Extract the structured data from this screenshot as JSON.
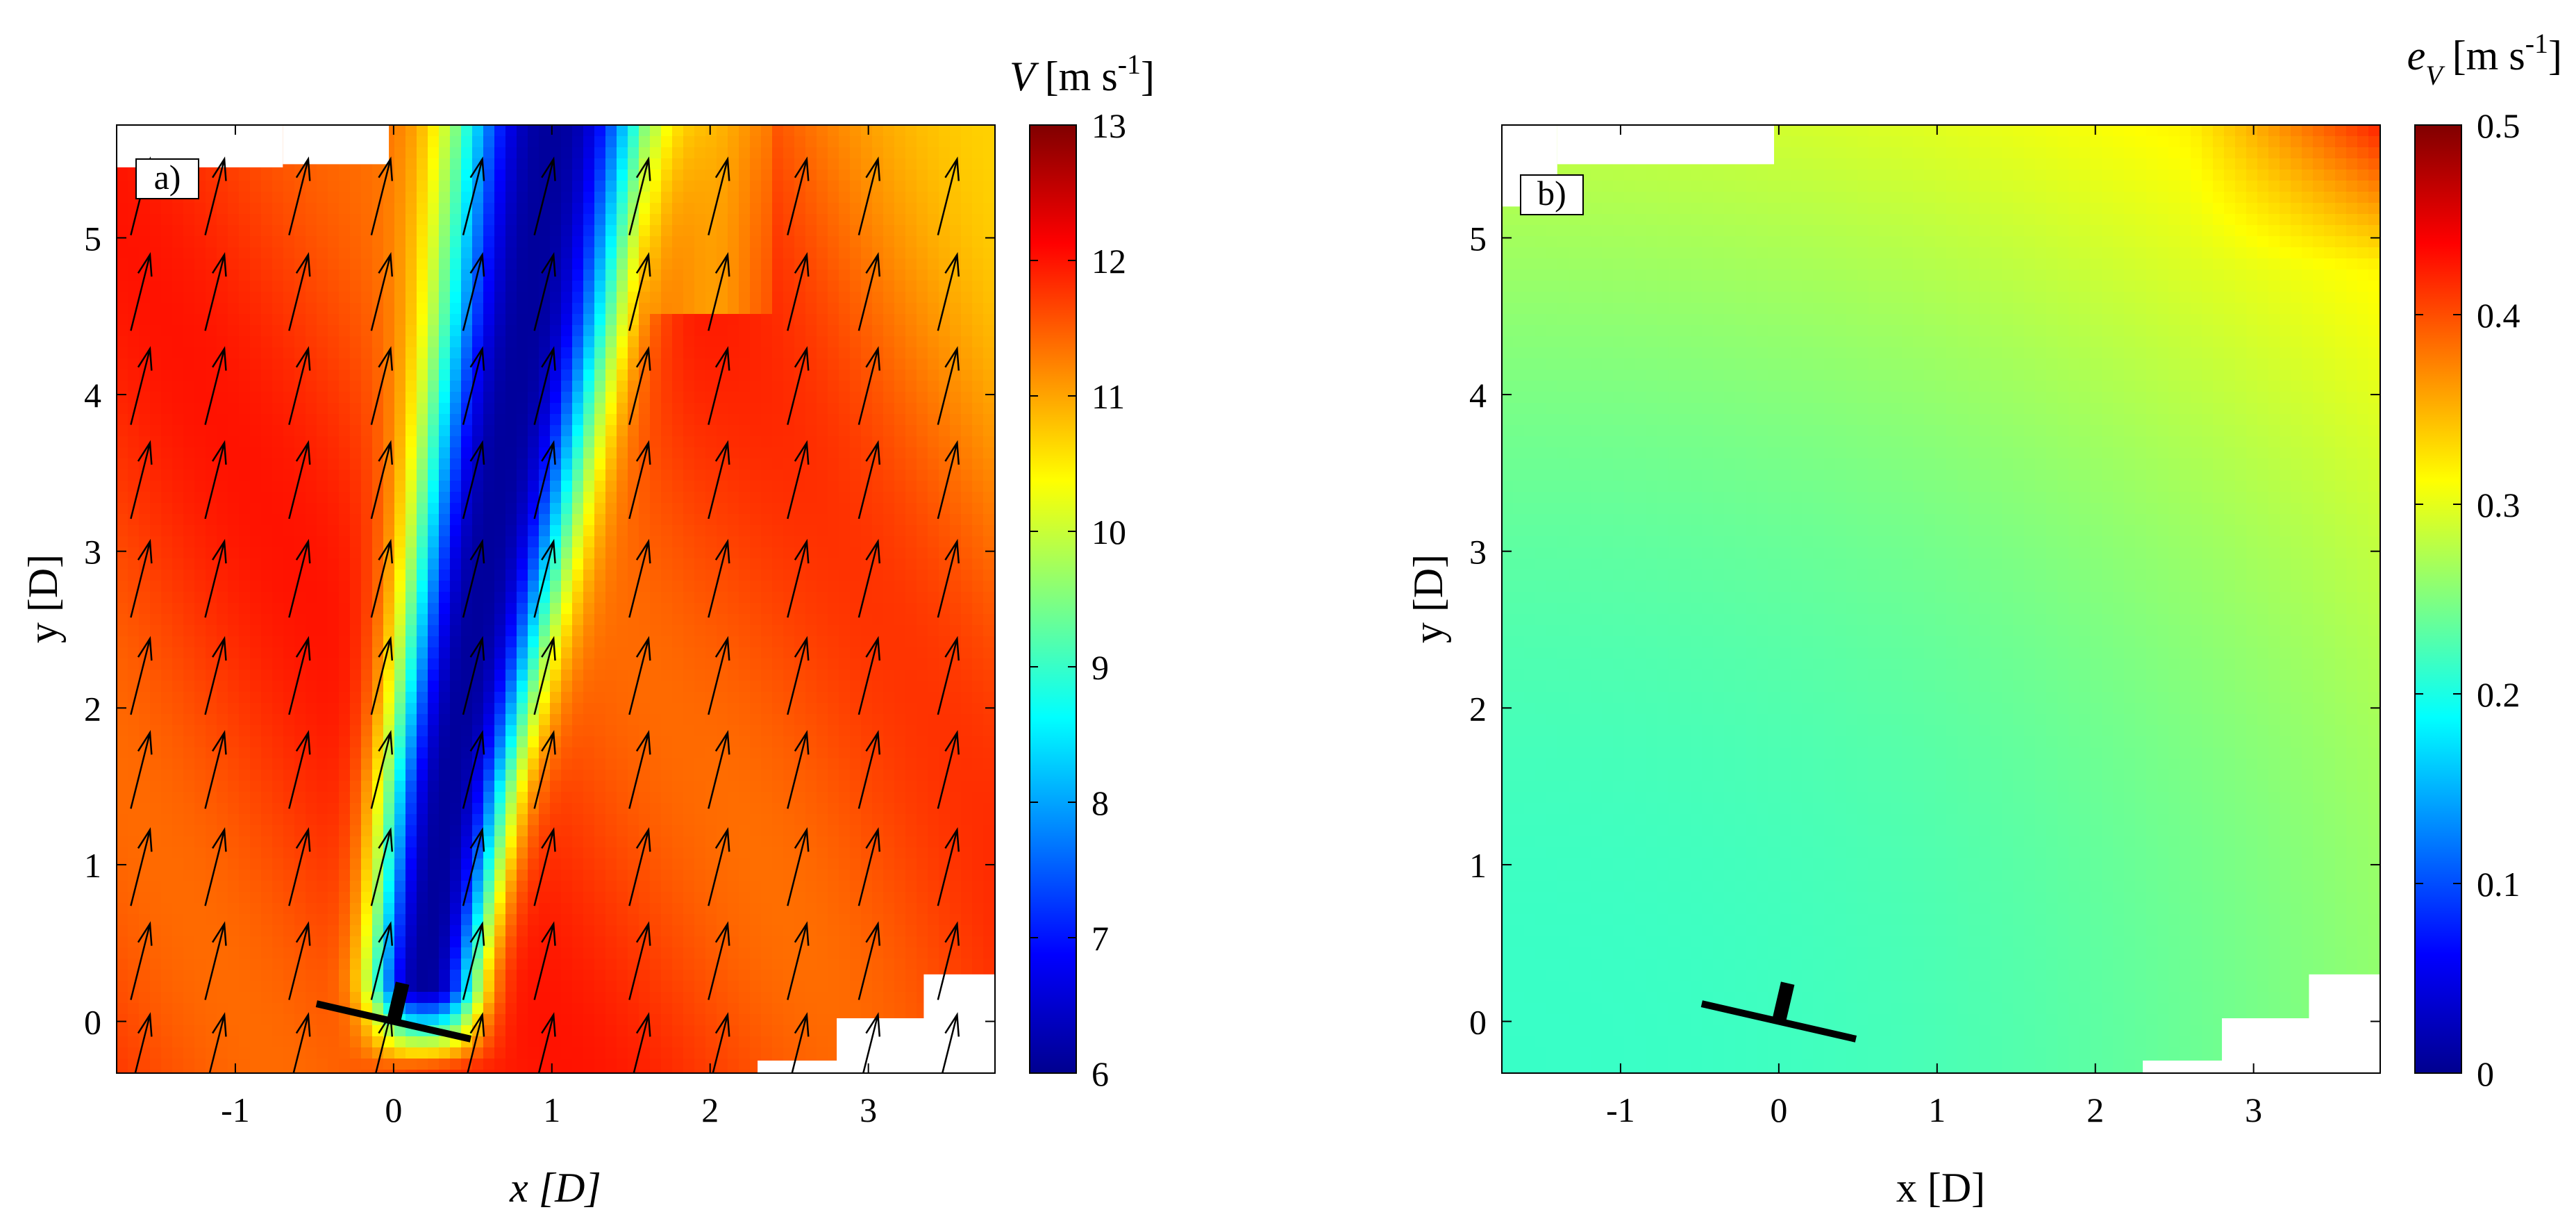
{
  "colors": {
    "jet": [
      "#00008f",
      "#0000ff",
      "#0080ff",
      "#00ffff",
      "#80ff80",
      "#ffff00",
      "#ff8000",
      "#ff0000",
      "#800000"
    ],
    "frame": "#000000",
    "turbine": "#000000",
    "arrow": "#000000"
  },
  "chart_data": [
    {
      "type": "heatmap",
      "panel_label": "a)",
      "title": "",
      "xlabel": "x [D]",
      "ylabel": "y [D]",
      "xlim": [
        -1.75,
        3.8
      ],
      "ylim": [
        -0.33,
        5.72
      ],
      "xticks": [
        -1,
        0,
        1,
        2,
        3
      ],
      "xtick_labels": [
        "-1",
        "0",
        "1",
        "2",
        "3"
      ],
      "yticks": [
        0,
        1,
        2,
        3,
        4,
        5
      ],
      "ytick_labels": [
        "0",
        "1",
        "2",
        "3",
        "4",
        "5"
      ],
      "colorbar": {
        "label": "V [m s-1]",
        "label_main": "V",
        "label_unit": "[m s",
        "label_exp": "-1",
        "label_close": "]",
        "min": 6,
        "max": 13,
        "ticks": [
          6,
          7,
          8,
          9,
          10,
          11,
          12,
          13
        ],
        "tick_labels": [
          "6",
          "7",
          "8",
          "9",
          "10",
          "11",
          "12",
          "13"
        ]
      },
      "field": {
        "freestream": 11.7,
        "wake_min": 6.1,
        "wake_axis": [
          [
            0.2,
            0.3
          ],
          [
            0.35,
            1.5
          ],
          [
            0.6,
            3.0
          ],
          [
            0.85,
            4.5
          ],
          [
            1.0,
            5.7
          ]
        ],
        "wake_halfwidth": 0.33
      },
      "turbine": {
        "x": 0.0,
        "y": 0.0,
        "rotor_diameter": 1.0,
        "yaw_deg": -13
      },
      "vectors": {
        "x": [
          -1.6,
          -1.13,
          -0.6,
          -0.08,
          0.5,
          0.95,
          1.55,
          2.05,
          2.55,
          3.0,
          3.5
        ],
        "y": [
          -0.2,
          0.38,
          0.98,
          1.6,
          2.2,
          2.82,
          3.45,
          4.05,
          4.65,
          5.26
        ],
        "angle_from_north_deg": 14,
        "length": 0.5
      },
      "masked_regions": [
        {
          "x": [
            2.3,
            3.85
          ],
          "y": [
            -0.4,
            -0.25
          ]
        },
        {
          "x": [
            2.8,
            3.85
          ],
          "y": [
            -0.4,
            0.02
          ]
        },
        {
          "x": [
            3.35,
            3.85
          ],
          "y": [
            -0.4,
            0.3
          ]
        },
        {
          "x": [
            -1.8,
            -0.7
          ],
          "y": [
            5.45,
            5.8
          ]
        },
        {
          "x": [
            -0.7,
            -0.03
          ],
          "y": [
            5.47,
            5.8
          ]
        }
      ]
    },
    {
      "type": "heatmap",
      "panel_label": "b)",
      "title": "",
      "xlabel": "x [D]",
      "ylabel": "y [D]",
      "xlim": [
        -1.75,
        3.8
      ],
      "ylim": [
        -0.33,
        5.72
      ],
      "xticks": [
        -1,
        0,
        1,
        2,
        3
      ],
      "xtick_labels": [
        "-1",
        "0",
        "1",
        "2",
        "3"
      ],
      "yticks": [
        0,
        1,
        2,
        3,
        4,
        5
      ],
      "ytick_labels": [
        "0",
        "1",
        "2",
        "3",
        "4",
        "5"
      ],
      "colorbar": {
        "label": "eV [m s-1]",
        "label_main": "e",
        "label_sub": "V",
        "label_unit": "[m s",
        "label_exp": "-1",
        "label_close": "]",
        "min": 0,
        "max": 0.5,
        "ticks": [
          0,
          0.1,
          0.2,
          0.3,
          0.4,
          0.5
        ],
        "tick_labels": [
          "0",
          "0.1",
          "0.2",
          "0.3",
          "0.4",
          "0.5"
        ]
      },
      "field": {
        "base": 0.22,
        "gradient": 0.03,
        "corner_max": 0.44,
        "origin": [
          -1.8,
          -0.4
        ]
      },
      "turbine": {
        "x": 0.0,
        "y": 0.0,
        "rotor_diameter": 1.0,
        "yaw_deg": -13
      },
      "masked_regions": [
        {
          "x": [
            2.3,
            3.85
          ],
          "y": [
            -0.4,
            -0.25
          ]
        },
        {
          "x": [
            2.8,
            3.85
          ],
          "y": [
            -0.4,
            0.02
          ]
        },
        {
          "x": [
            3.35,
            3.85
          ],
          "y": [
            -0.4,
            0.3
          ]
        },
        {
          "x": [
            -1.8,
            -1.4
          ],
          "y": [
            5.2,
            5.8
          ]
        },
        {
          "x": [
            -1.4,
            -0.03
          ],
          "y": [
            5.47,
            5.8
          ]
        }
      ]
    }
  ]
}
